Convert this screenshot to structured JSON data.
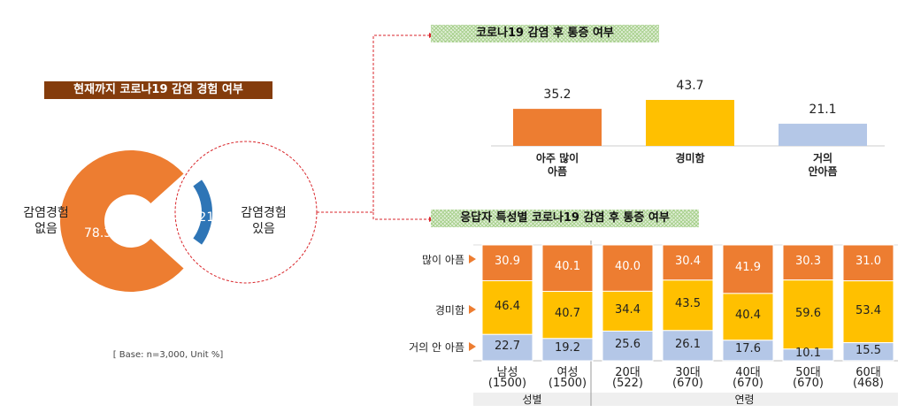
{
  "colors": {
    "orange": "#ed7d31",
    "yellow": "#ffc000",
    "blue": "#4472c4",
    "lightblue": "#b4c7e7",
    "darkblue": "#2e75b6",
    "brown": "#843c0c",
    "dashed_red": "#d9262b"
  },
  "chart_data": [
    {
      "type": "pie",
      "title": "현재까지 코로나19 감염 경험 여부",
      "donut": true,
      "categories": [
        "감염경험 없음",
        "감염경험 있음"
      ],
      "values": [
        78.3,
        21.7
      ],
      "labels": {
        "no": [
          "감염경험",
          "없음"
        ],
        "yes": [
          "감염경험",
          "있음"
        ]
      },
      "value_labels": [
        "78.3",
        "21.7"
      ],
      "note": "[ Base:  n=3,000, Unit %]"
    },
    {
      "type": "bar",
      "title": "코로나19 감염 후 통증 여부",
      "categories": [
        [
          "아주 많이",
          "아픔"
        ],
        [
          "경미함"
        ],
        [
          "거의",
          "안아픔"
        ]
      ],
      "values": [
        35.2,
        43.7,
        21.1
      ],
      "value_labels": [
        "35.2",
        "43.7",
        "21.1"
      ]
    },
    {
      "type": "bar",
      "stacked": true,
      "title": "응답자 특성별 코로나19 감염 후 통증 여부",
      "categories": [
        [
          "남성",
          "(1500)"
        ],
        [
          "여성",
          "(1500)"
        ],
        [
          "20대",
          "(522)"
        ],
        [
          "30대",
          "(670)"
        ],
        [
          "40대",
          "(670)"
        ],
        [
          "50대",
          "(670)"
        ],
        [
          "60대",
          "(468)"
        ]
      ],
      "groups": [
        {
          "name": "성별",
          "count": 2
        },
        {
          "name": "연령",
          "count": 5
        }
      ],
      "series": [
        {
          "name": "많이 아픔",
          "values": [
            30.9,
            40.1,
            40.0,
            30.4,
            41.9,
            30.3,
            31.0
          ],
          "labels": [
            "30.9",
            "40.1",
            "40.0",
            "30.4",
            "41.9",
            "30.3",
            "31.0"
          ]
        },
        {
          "name": "경미함",
          "values": [
            46.4,
            40.7,
            34.4,
            43.5,
            40.4,
            59.6,
            53.4
          ],
          "labels": [
            "46.4",
            "40.7",
            "34.4",
            "43.5",
            "40.4",
            "59.6",
            "53.4"
          ]
        },
        {
          "name": "거의 안 아픔",
          "values": [
            22.7,
            19.2,
            25.6,
            26.1,
            17.6,
            10.1,
            15.5
          ],
          "labels": [
            "22.7",
            "19.2",
            "25.6",
            "26.1",
            "17.6",
            "10.1",
            "15.5"
          ]
        }
      ]
    }
  ]
}
